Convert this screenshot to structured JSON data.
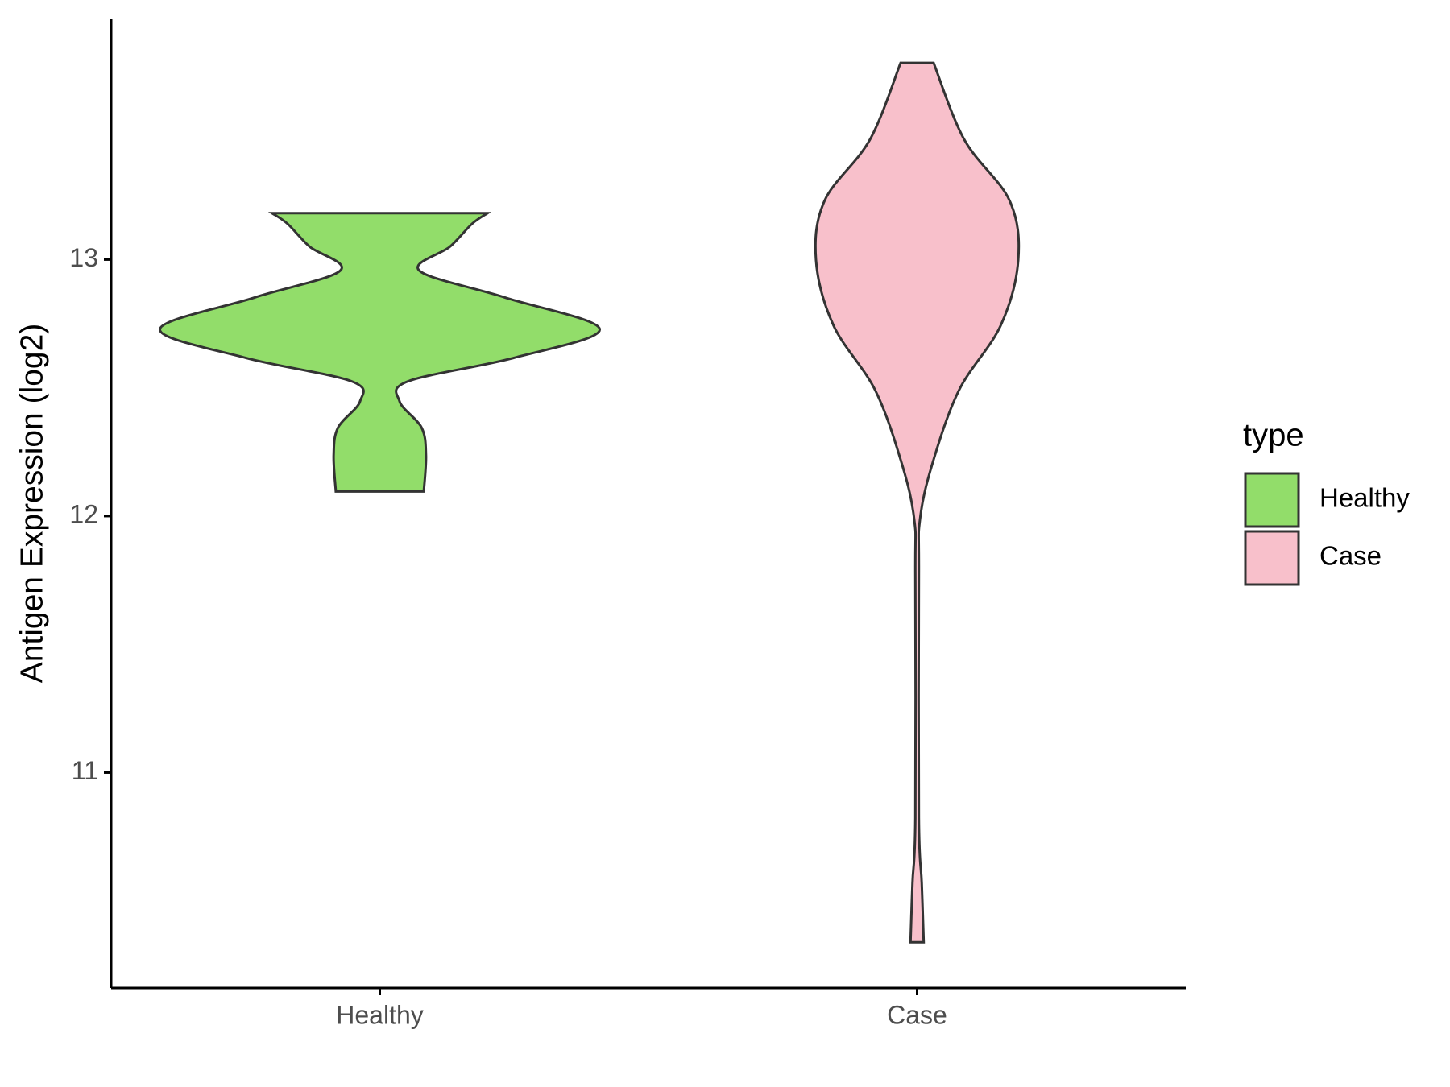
{
  "chart_data": {
    "type": "violin",
    "y_label": "Antigen Expression (log2)",
    "categories": [
      "Healthy",
      "Case"
    ],
    "ylim": [
      10.16,
      13.94
    ],
    "yticks": [
      11,
      12,
      13
    ],
    "legend_title": "type",
    "legend_position": "right",
    "series": [
      {
        "name": "Healthy",
        "color": "#92dd6a",
        "y": [
          13.181,
          13.14,
          13.051,
          12.957,
          12.852,
          12.729,
          12.617,
          12.526,
          12.447,
          12.345,
          12.237,
          12.096
        ],
        "density": [
          0.49,
          0.42,
          0.32,
          0.18,
          0.57,
          1.0,
          0.61,
          0.13,
          0.09,
          0.19,
          0.21,
          0.2
        ]
      },
      {
        "name": "Case",
        "color": "#f8c0cb",
        "y": [
          13.767,
          13.467,
          13.231,
          13.0,
          12.743,
          12.49,
          12.2,
          11.986,
          11.767,
          10.823,
          10.57,
          10.338
        ],
        "density": [
          0.075,
          0.215,
          0.42,
          0.46,
          0.38,
          0.19,
          0.068,
          0.013,
          0.008,
          0.008,
          0.021,
          0.03
        ]
      }
    ]
  }
}
